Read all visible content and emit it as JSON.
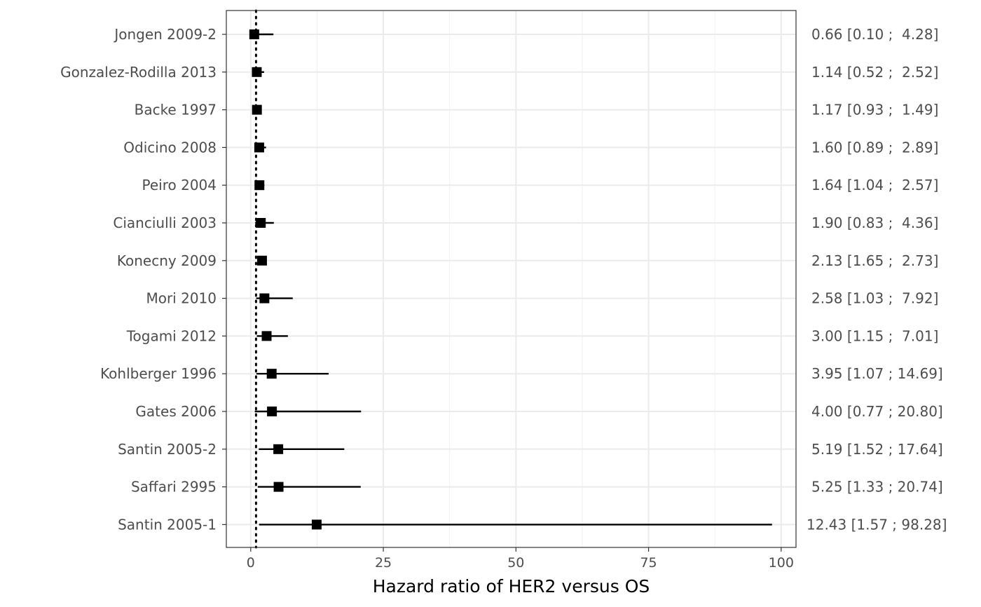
{
  "chart_data": {
    "type": "forest",
    "xlabel": "Hazard ratio of HER2 versus OS",
    "xlim": [
      -4.6,
      102.8
    ],
    "x_ticks": [
      0,
      25,
      50,
      75,
      100
    ],
    "x_tick_labels": [
      "0",
      "25",
      "50",
      "75",
      "100"
    ],
    "reference_line": 1,
    "grid": true,
    "studies": [
      {
        "name": "Jongen 2009-2",
        "hr": 0.66,
        "lower": 0.1,
        "upper": 4.28,
        "label": "0.66 [0.10 ;  4.28]"
      },
      {
        "name": "Gonzalez-Rodilla 2013",
        "hr": 1.14,
        "lower": 0.52,
        "upper": 2.52,
        "label": "1.14 [0.52 ;  2.52]"
      },
      {
        "name": "Backe 1997",
        "hr": 1.17,
        "lower": 0.93,
        "upper": 1.49,
        "label": "1.17 [0.93 ;  1.49]"
      },
      {
        "name": "Odicino 2008",
        "hr": 1.6,
        "lower": 0.89,
        "upper": 2.89,
        "label": "1.60 [0.89 ;  2.89]"
      },
      {
        "name": "Peiro 2004",
        "hr": 1.64,
        "lower": 1.04,
        "upper": 2.57,
        "label": "1.64 [1.04 ;  2.57]"
      },
      {
        "name": "Cianciulli 2003",
        "hr": 1.9,
        "lower": 0.83,
        "upper": 4.36,
        "label": "1.90 [0.83 ;  4.36]"
      },
      {
        "name": "Konecny 2009",
        "hr": 2.13,
        "lower": 1.65,
        "upper": 2.73,
        "label": "2.13 [1.65 ;  2.73]"
      },
      {
        "name": "Mori 2010",
        "hr": 2.58,
        "lower": 1.03,
        "upper": 7.92,
        "label": "2.58 [1.03 ;  7.92]"
      },
      {
        "name": "Togami 2012",
        "hr": 3.0,
        "lower": 1.15,
        "upper": 7.01,
        "label": "3.00 [1.15 ;  7.01]"
      },
      {
        "name": "Kohlberger 1996",
        "hr": 3.95,
        "lower": 1.07,
        "upper": 14.69,
        "label": "3.95 [1.07 ; 14.69]"
      },
      {
        "name": "Gates 2006",
        "hr": 4.0,
        "lower": 0.77,
        "upper": 20.8,
        "label": "4.00 [0.77 ; 20.80]"
      },
      {
        "name": "Santin 2005-2",
        "hr": 5.19,
        "lower": 1.52,
        "upper": 17.64,
        "label": "5.19 [1.52 ; 17.64]"
      },
      {
        "name": "Saffari 2995",
        "hr": 5.25,
        "lower": 1.33,
        "upper": 20.74,
        "label": "5.25 [1.33 ; 20.74]"
      },
      {
        "name": "Santin 2005-1",
        "hr": 12.43,
        "lower": 1.57,
        "upper": 98.28,
        "label": "12.43 [1.57 ; 98.28]"
      }
    ]
  }
}
